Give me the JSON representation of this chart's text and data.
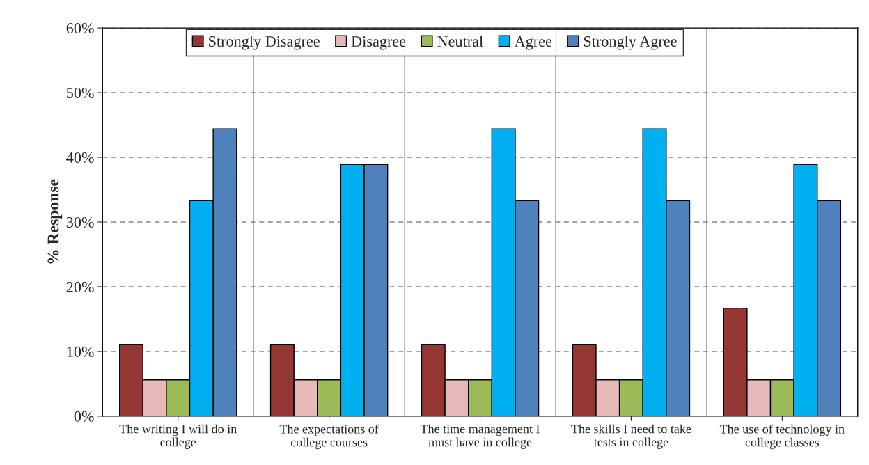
{
  "chart_data": {
    "type": "bar",
    "ylabel": "% Response",
    "categories": [
      "The writing I will do in\ncollege",
      "The expectations of\ncollege courses",
      "The time management I\nmust have in college",
      "The skills I need to take\ntests in college",
      "The use of technology in\ncollege classes"
    ],
    "series": [
      {
        "name": "Strongly Disagree",
        "color": "#943634",
        "values": [
          11.1,
          11.1,
          11.1,
          11.1,
          16.7
        ]
      },
      {
        "name": "Disagree",
        "color": "#e6b9b8",
        "values": [
          5.6,
          5.6,
          5.6,
          5.6,
          5.6
        ]
      },
      {
        "name": "Neutral",
        "color": "#9bbb59",
        "values": [
          5.6,
          5.6,
          5.6,
          5.6,
          5.6
        ]
      },
      {
        "name": "Agree",
        "color": "#00b0f0",
        "values": [
          33.3,
          38.9,
          44.4,
          44.4,
          38.9
        ]
      },
      {
        "name": "Strongly Agree",
        "color": "#4f81bd",
        "values": [
          44.4,
          38.9,
          33.3,
          33.3,
          33.3
        ]
      }
    ],
    "ylim": [
      0,
      60
    ],
    "yticks": [
      {
        "value": 0,
        "label": "0%"
      },
      {
        "value": 10,
        "label": "10%"
      },
      {
        "value": 20,
        "label": "20%"
      },
      {
        "value": 30,
        "label": "30%"
      },
      {
        "value": 40,
        "label": "40%"
      },
      {
        "value": 50,
        "label": "50%"
      },
      {
        "value": 60,
        "label": "60%"
      }
    ],
    "grid": true,
    "legend": "top"
  }
}
